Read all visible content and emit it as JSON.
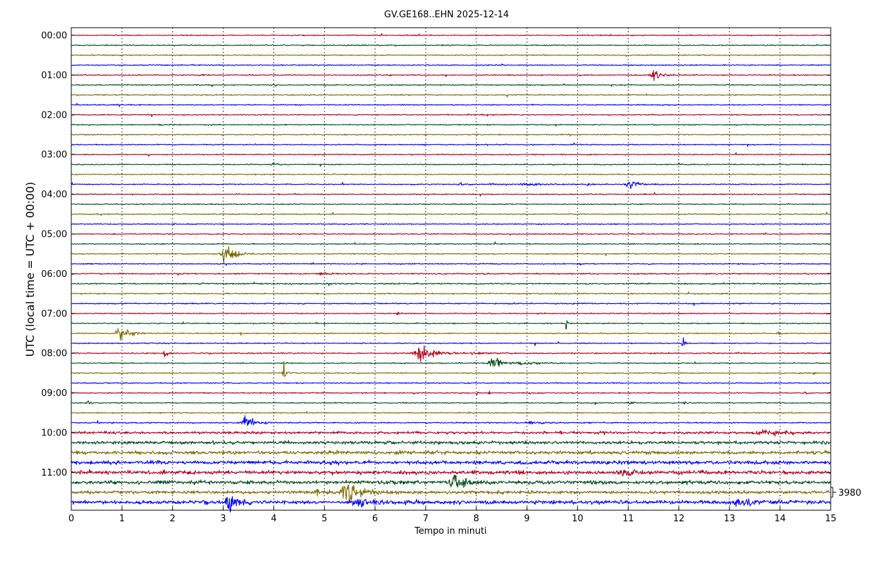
{
  "chart_data": {
    "type": "line",
    "title": "GV.GE168..EHN 2025-12-14",
    "xlabel": "Tempo in minuti",
    "ylabel": "UTC (local time = UTC + 00:00)",
    "xlim": [
      0,
      15
    ],
    "x_ticks": [
      "0",
      "1",
      "2",
      "3",
      "4",
      "5",
      "6",
      "7",
      "8",
      "9",
      "10",
      "11",
      "12",
      "13",
      "14",
      "15"
    ],
    "y_tick_labels": [
      "00:00",
      "01:00",
      "02:00",
      "03:00",
      "04:00",
      "05:00",
      "06:00",
      "07:00",
      "08:00",
      "09:00",
      "10:00",
      "11:00"
    ],
    "row_interval_minutes": 15,
    "row_count": 48,
    "scale_label": "3980",
    "grid": "vertical dotted at each minute",
    "color_cycle": [
      "#b0001e",
      "#004d1a",
      "#7a6a00",
      "#0000ff"
    ],
    "rows": [
      {
        "start": "00:00",
        "amp": 1
      },
      {
        "start": "00:15",
        "amp": 1
      },
      {
        "start": "00:30",
        "amp": 1
      },
      {
        "start": "00:45",
        "amp": 1
      },
      {
        "start": "01:00",
        "amp": 1,
        "events": [
          {
            "t": 11.5,
            "a": 14,
            "w": 0.12
          },
          {
            "t": 2.55,
            "a": 3,
            "w": 0.05
          },
          {
            "t": 6.3,
            "a": 3,
            "w": 0.03
          }
        ]
      },
      {
        "start": "01:15",
        "amp": 1
      },
      {
        "start": "01:30",
        "amp": 1
      },
      {
        "start": "01:45",
        "amp": 1
      },
      {
        "start": "02:00",
        "amp": 1
      },
      {
        "start": "02:15",
        "amp": 1,
        "events": [
          {
            "t": 1.75,
            "a": 2,
            "w": 0.05
          }
        ]
      },
      {
        "start": "02:30",
        "amp": 1
      },
      {
        "start": "02:45",
        "amp": 1
      },
      {
        "start": "03:00",
        "amp": 1
      },
      {
        "start": "03:15",
        "amp": 1,
        "events": [
          {
            "t": 3.97,
            "a": 5,
            "w": 0.06
          }
        ]
      },
      {
        "start": "03:30",
        "amp": 1
      },
      {
        "start": "03:45",
        "amp": 1,
        "events": [
          {
            "t": 11.05,
            "a": 7,
            "w": 0.2
          },
          {
            "t": 7.7,
            "a": 2.5,
            "w": 0.15
          },
          {
            "t": 9.05,
            "a": 3,
            "w": 0.35
          },
          {
            "t": 10.2,
            "a": 2.5,
            "w": 0.1
          },
          {
            "t": 8.3,
            "a": 2,
            "w": 0.1
          }
        ]
      },
      {
        "start": "04:00",
        "amp": 1
      },
      {
        "start": "04:15",
        "amp": 1
      },
      {
        "start": "04:30",
        "amp": 1
      },
      {
        "start": "04:45",
        "amp": 1
      },
      {
        "start": "05:00",
        "amp": 1
      },
      {
        "start": "05:15",
        "amp": 1
      },
      {
        "start": "05:30",
        "amp": 1,
        "events": [
          {
            "t": 3.05,
            "a": 22,
            "w": 0.18
          }
        ]
      },
      {
        "start": "05:45",
        "amp": 1,
        "events": [
          {
            "t": 11.4,
            "a": 3,
            "w": 0.03
          },
          {
            "t": 10.05,
            "a": 3,
            "w": 0.03
          }
        ]
      },
      {
        "start": "06:00",
        "amp": 1.2,
        "events": [
          {
            "t": 4.95,
            "a": 3,
            "w": 0.15
          }
        ]
      },
      {
        "start": "06:15",
        "amp": 1.3
      },
      {
        "start": "06:30",
        "amp": 1.2
      },
      {
        "start": "06:45",
        "amp": 1.1
      },
      {
        "start": "07:00",
        "amp": 1,
        "events": [
          {
            "t": 6.45,
            "a": 4,
            "w": 0.05
          }
        ]
      },
      {
        "start": "07:15",
        "amp": 1,
        "events": [
          {
            "t": 9.77,
            "a": 22,
            "w": 0.02
          }
        ]
      },
      {
        "start": "07:30",
        "amp": 1,
        "events": [
          {
            "t": 0.97,
            "a": 18,
            "w": 0.15
          },
          {
            "t": 13.95,
            "a": 3,
            "w": 0.05
          },
          {
            "t": 3.35,
            "a": 2,
            "w": 0.03
          }
        ]
      },
      {
        "start": "07:45",
        "amp": 1,
        "events": [
          {
            "t": 12.07,
            "a": 14,
            "w": 0.05
          }
        ]
      },
      {
        "start": "08:00",
        "amp": 1.2,
        "events": [
          {
            "t": 6.9,
            "a": 17,
            "w": 0.25
          },
          {
            "t": 1.85,
            "a": 10,
            "w": 0.06
          },
          {
            "t": 8.0,
            "a": 2,
            "w": 0.25
          }
        ]
      },
      {
        "start": "08:15",
        "amp": 1,
        "events": [
          {
            "t": 8.33,
            "a": 16,
            "w": 0.15
          },
          {
            "t": 8.9,
            "a": 3,
            "w": 0.3
          }
        ]
      },
      {
        "start": "08:30",
        "amp": 1,
        "events": [
          {
            "t": 4.2,
            "a": 30,
            "w": 0.04
          },
          {
            "t": 14.65,
            "a": 3,
            "w": 0.05
          }
        ]
      },
      {
        "start": "08:45",
        "amp": 1,
        "events": [
          {
            "t": 3.0,
            "a": 2,
            "w": 0.05
          }
        ]
      },
      {
        "start": "09:00",
        "amp": 1,
        "events": [
          {
            "t": 8.0,
            "a": 6,
            "w": 0.02
          },
          {
            "t": 8.25,
            "a": 7,
            "w": 0.02
          },
          {
            "t": 9.05,
            "a": 4,
            "w": 0.02
          },
          {
            "t": 14.5,
            "a": 3,
            "w": 0.04
          }
        ]
      },
      {
        "start": "09:15",
        "amp": 1,
        "events": [
          {
            "t": 0.33,
            "a": 6,
            "w": 0.04
          },
          {
            "t": 11.0,
            "a": 3,
            "w": 0.1
          },
          {
            "t": 12.1,
            "a": 3,
            "w": 0.05
          }
        ]
      },
      {
        "start": "09:30",
        "amp": 1,
        "events": [
          {
            "t": 7.9,
            "a": 2,
            "w": 0.15
          }
        ]
      },
      {
        "start": "09:45",
        "amp": 1.2,
        "events": [
          {
            "t": 3.45,
            "a": 20,
            "w": 0.14
          },
          {
            "t": 9.1,
            "a": 3,
            "w": 0.2
          }
        ]
      },
      {
        "start": "10:00",
        "amp": 2.5,
        "events": [
          {
            "t": 13.7,
            "a": 5,
            "w": 0.3
          },
          {
            "t": 0.7,
            "a": 4,
            "w": 0.05
          }
        ]
      },
      {
        "start": "10:15",
        "amp": 3
      },
      {
        "start": "10:30",
        "amp": 3.2
      },
      {
        "start": "10:45",
        "amp": 3.5
      },
      {
        "start": "11:00",
        "amp": 3.5,
        "events": [
          {
            "t": 10.95,
            "a": 5,
            "w": 0.25
          }
        ]
      },
      {
        "start": "11:15",
        "amp": 3.5,
        "events": [
          {
            "t": 7.55,
            "a": 18,
            "w": 0.15
          }
        ]
      },
      {
        "start": "11:30",
        "amp": 3,
        "events": [
          {
            "t": 5.45,
            "a": 28,
            "w": 0.2
          },
          {
            "t": 4.85,
            "a": 6,
            "w": 0.1
          }
        ]
      },
      {
        "start": "11:45",
        "amp": 3.5,
        "events": [
          {
            "t": 3.12,
            "a": 22,
            "w": 0.12
          },
          {
            "t": 5.7,
            "a": 10,
            "w": 0.3
          },
          {
            "t": 13.2,
            "a": 7,
            "w": 0.25
          },
          {
            "t": 2.6,
            "a": 5,
            "w": 0.05
          }
        ]
      }
    ]
  }
}
